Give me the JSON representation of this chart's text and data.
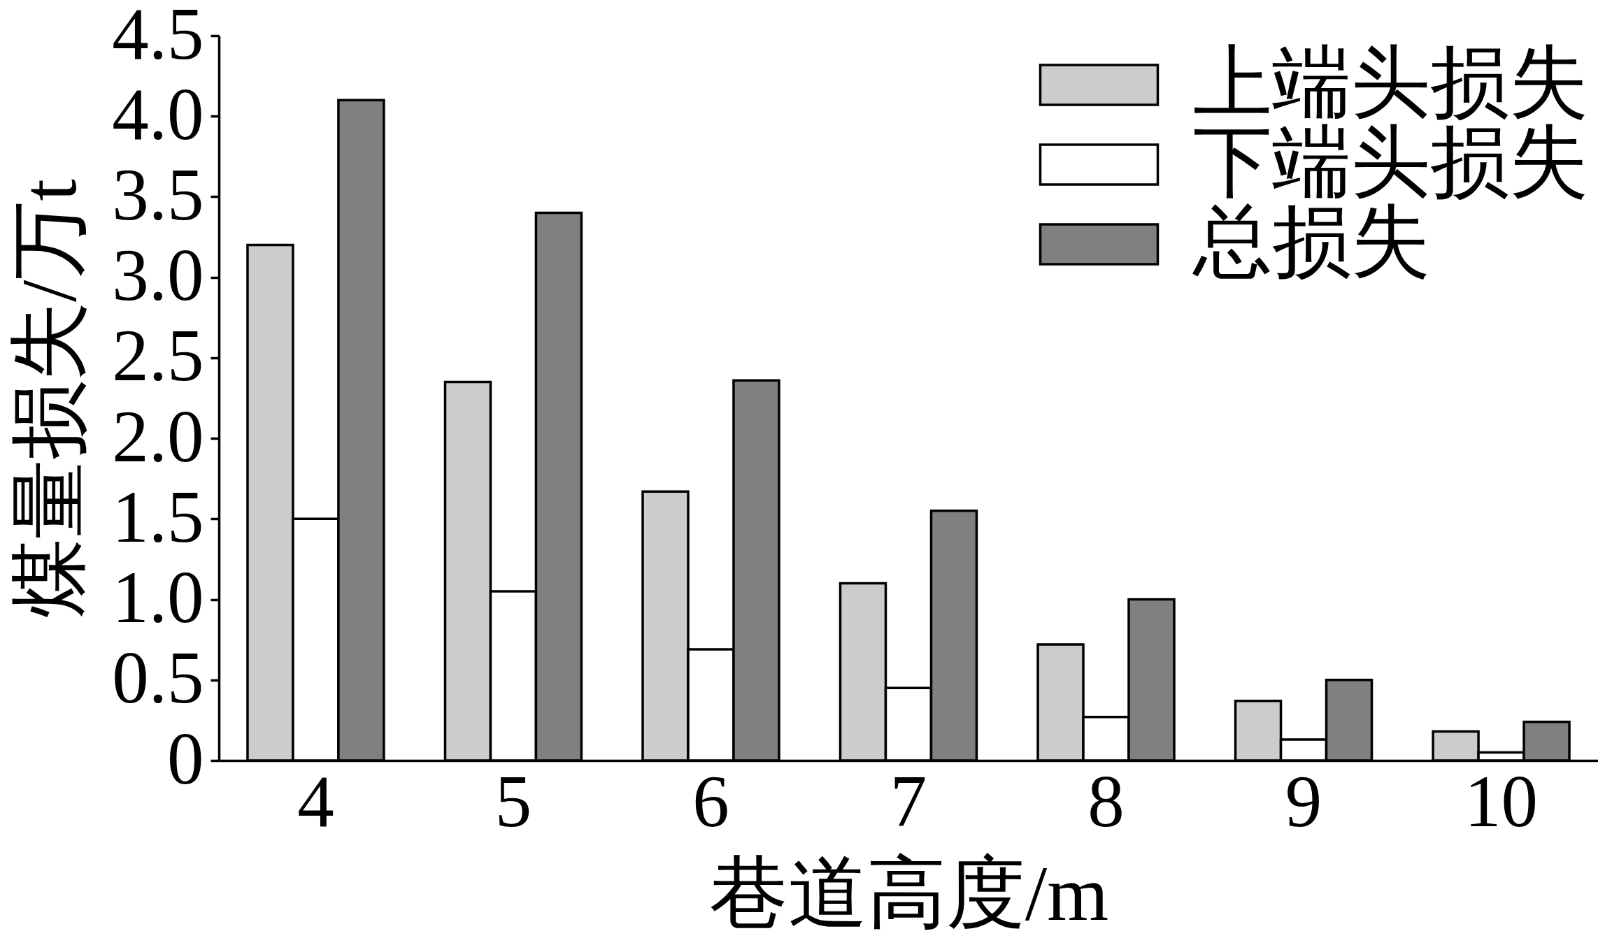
{
  "chart_data": {
    "type": "bar",
    "xlabel": "巷道高度/m",
    "ylabel": "煤量损失/万t",
    "categories": [
      "4",
      "5",
      "6",
      "7",
      "8",
      "9",
      "10"
    ],
    "series": [
      {
        "name": "上端头损失",
        "color": "#cccccc",
        "values": [
          3.2,
          2.35,
          1.67,
          1.1,
          0.72,
          0.37,
          0.18
        ]
      },
      {
        "name": "下端头损失",
        "color": "#ffffff",
        "values": [
          1.5,
          1.05,
          0.69,
          0.45,
          0.27,
          0.13,
          0.05
        ]
      },
      {
        "name": "总损失",
        "color": "#808080",
        "values": [
          4.1,
          3.4,
          2.36,
          1.55,
          1.0,
          0.5,
          0.24
        ]
      }
    ],
    "ylim": [
      0,
      4.5
    ],
    "yticks": [
      0,
      0.5,
      {
        "value": 1,
        "label": "1.0"
      },
      1.5,
      {
        "value": 2,
        "label": "2.0"
      },
      2.5,
      {
        "value": 3,
        "label": "3.0"
      },
      3.5,
      {
        "value": 4,
        "label": "4.0"
      },
      4.5
    ],
    "legend": "top right"
  }
}
